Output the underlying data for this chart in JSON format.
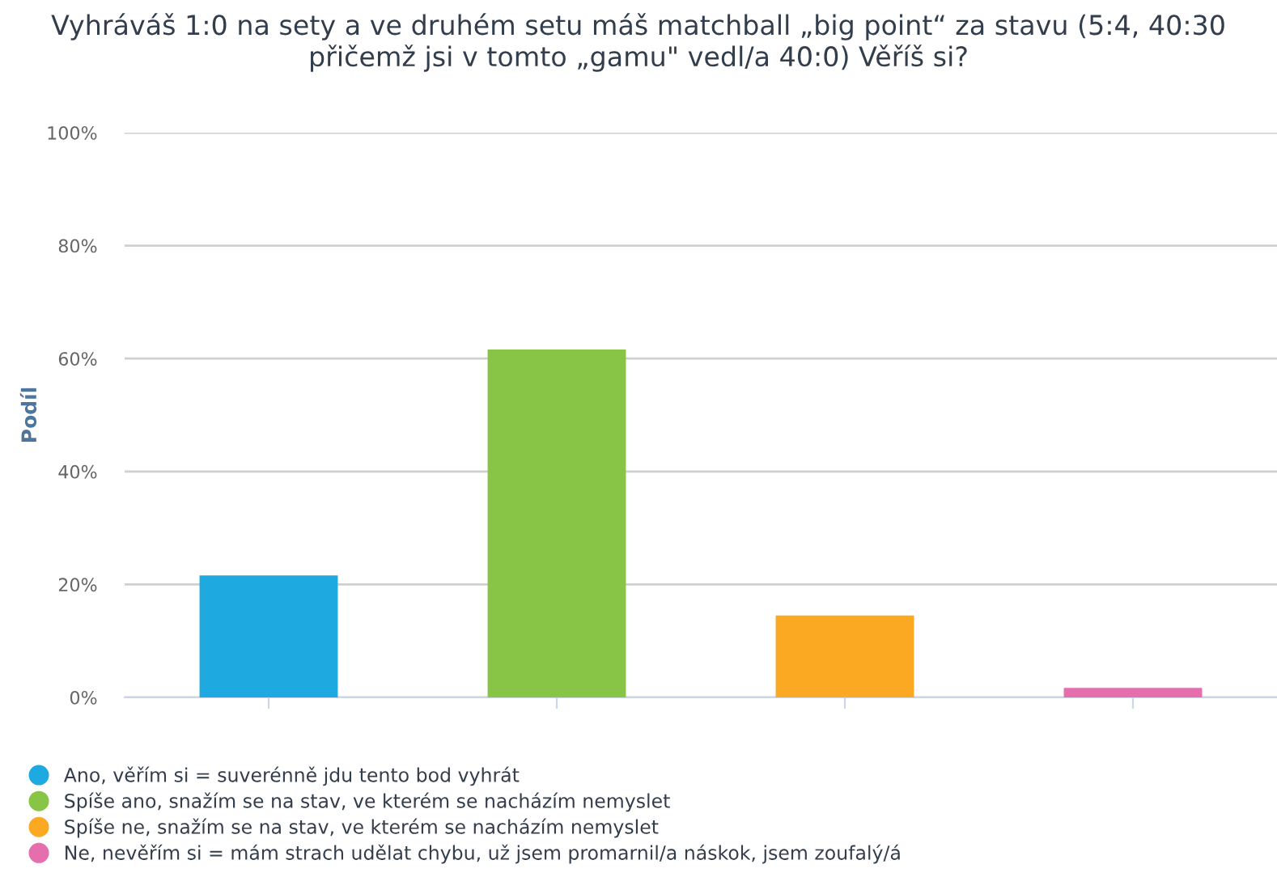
{
  "chart_data": {
    "type": "bar",
    "title": "Vyhráváš 1:0 na sety a ve druhém setu máš matchball „big point“ za stavu (5:4, 40:30 přičemž jsi v tomto „gamu\" vedl/a 40:0) Věříš si?",
    "ylabel": "Podíl",
    "categories": [
      null,
      null,
      null,
      null
    ],
    "series": [
      {
        "name": "Ano, věřím si = suverénně jdu tento bod vyhrát",
        "color": "#1fa9e1",
        "values": [
          21.6,
          null,
          null,
          null
        ]
      },
      {
        "name": "Spíše ano, snažím se na stav, ve kterém se nacházím nemyslet",
        "color": "#88c546",
        "values": [
          null,
          61.6,
          null,
          null
        ]
      },
      {
        "name": "Spíše ne, snažím se na stav, ve kterém se nacházím nemyslet",
        "color": "#fba823",
        "values": [
          null,
          null,
          14.5,
          null
        ]
      },
      {
        "name": "Ne, nevěřím si = mám strach udělat chybu, už jsem promarnil/a náskok, jsem zoufalý/á",
        "color": "#e56fac",
        "values": [
          null,
          null,
          null,
          1.7
        ]
      }
    ],
    "ylim": [
      0,
      100
    ],
    "yticks": [
      {
        "value": 0,
        "label": "0%"
      },
      {
        "value": 20,
        "label": "20%"
      },
      {
        "value": 40,
        "label": "40%"
      },
      {
        "value": 60,
        "label": "60%"
      },
      {
        "value": 80,
        "label": "80%"
      },
      {
        "value": 100,
        "label": "100%"
      }
    ],
    "grid": "y",
    "legend": "bottom"
  }
}
